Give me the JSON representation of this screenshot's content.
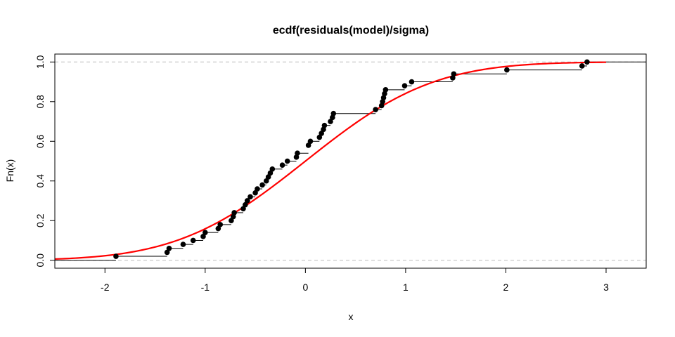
{
  "chart_data": {
    "type": "scatter",
    "title": "ecdf(residuals(model)/sigma)",
    "xlabel": "x",
    "ylabel": "Fn(x)",
    "xlim": [
      -2.5,
      3.4
    ],
    "ylim": [
      -0.04,
      1.04
    ],
    "x_ticks": [
      -2,
      -1,
      0,
      1,
      2,
      3
    ],
    "x_tick_labels": [
      "-2",
      "-1",
      "0",
      "1",
      "2",
      "3"
    ],
    "y_ticks": [
      0.0,
      0.2,
      0.4,
      0.6,
      0.8,
      1.0
    ],
    "y_tick_labels": [
      "0.0",
      "0.2",
      "0.4",
      "0.6",
      "0.8",
      "1.0"
    ],
    "reference_lines_y": [
      0,
      1
    ],
    "colors": {
      "points": "#000000",
      "steps": "#000000",
      "reference": "#bebebe",
      "cdf_curve": "#ff0000",
      "frame": "#000000"
    },
    "ecdf_points": [
      {
        "x": -1.89,
        "y": 0.02
      },
      {
        "x": -1.38,
        "y": 0.04
      },
      {
        "x": -1.36,
        "y": 0.06
      },
      {
        "x": -1.22,
        "y": 0.08
      },
      {
        "x": -1.12,
        "y": 0.1
      },
      {
        "x": -1.02,
        "y": 0.12
      },
      {
        "x": -1.0,
        "y": 0.14
      },
      {
        "x": -0.87,
        "y": 0.16
      },
      {
        "x": -0.85,
        "y": 0.18
      },
      {
        "x": -0.74,
        "y": 0.2
      },
      {
        "x": -0.72,
        "y": 0.22
      },
      {
        "x": -0.71,
        "y": 0.24
      },
      {
        "x": -0.62,
        "y": 0.26
      },
      {
        "x": -0.6,
        "y": 0.28
      },
      {
        "x": -0.58,
        "y": 0.3
      },
      {
        "x": -0.55,
        "y": 0.32
      },
      {
        "x": -0.5,
        "y": 0.34
      },
      {
        "x": -0.48,
        "y": 0.36
      },
      {
        "x": -0.43,
        "y": 0.38
      },
      {
        "x": -0.39,
        "y": 0.4
      },
      {
        "x": -0.37,
        "y": 0.42
      },
      {
        "x": -0.35,
        "y": 0.44
      },
      {
        "x": -0.33,
        "y": 0.46
      },
      {
        "x": -0.23,
        "y": 0.48
      },
      {
        "x": -0.18,
        "y": 0.5
      },
      {
        "x": -0.09,
        "y": 0.52
      },
      {
        "x": -0.08,
        "y": 0.54
      },
      {
        "x": 0.03,
        "y": 0.58
      },
      {
        "x": 0.05,
        "y": 0.6
      },
      {
        "x": 0.14,
        "y": 0.62
      },
      {
        "x": 0.16,
        "y": 0.64
      },
      {
        "x": 0.18,
        "y": 0.66
      },
      {
        "x": 0.19,
        "y": 0.68
      },
      {
        "x": 0.25,
        "y": 0.7
      },
      {
        "x": 0.27,
        "y": 0.72
      },
      {
        "x": 0.28,
        "y": 0.74
      },
      {
        "x": 0.7,
        "y": 0.76
      },
      {
        "x": 0.76,
        "y": 0.78
      },
      {
        "x": 0.77,
        "y": 0.8
      },
      {
        "x": 0.78,
        "y": 0.82
      },
      {
        "x": 0.79,
        "y": 0.84
      },
      {
        "x": 0.8,
        "y": 0.86
      },
      {
        "x": 0.99,
        "y": 0.88
      },
      {
        "x": 1.06,
        "y": 0.9
      },
      {
        "x": 1.47,
        "y": 0.92
      },
      {
        "x": 1.48,
        "y": 0.94
      },
      {
        "x": 2.01,
        "y": 0.96
      },
      {
        "x": 2.76,
        "y": 0.98
      },
      {
        "x": 2.81,
        "y": 1.0
      }
    ],
    "cdf_curve": {
      "description": "normal CDF, mean 0, sd 1",
      "x_range": [
        -2.5,
        3.0
      ]
    }
  }
}
